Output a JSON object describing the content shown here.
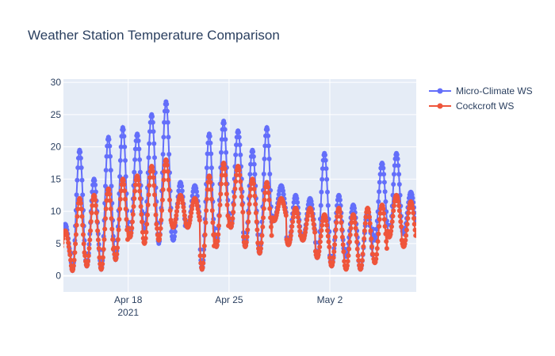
{
  "chart_data": {
    "type": "line",
    "title": "Weather Station Temperature Comparison",
    "xlabel": "",
    "ylabel": "",
    "x_range": [
      "2021-04-13T12:00",
      "2021-05-08T00:00"
    ],
    "ylim": [
      -2.5,
      30.5
    ],
    "y_ticks": [
      0,
      5,
      10,
      15,
      20,
      25,
      30
    ],
    "x_ticks": [
      {
        "value": "2021-04-18",
        "label": "Apr 18",
        "sublabel": "2021"
      },
      {
        "value": "2021-04-25",
        "label": "Apr 25",
        "sublabel": ""
      },
      {
        "value": "2021-05-02",
        "label": "May 2",
        "sublabel": ""
      }
    ],
    "grid": true,
    "legend_position": "top-right",
    "marker": "circle",
    "days": [
      "2021-04-13",
      "2021-04-14",
      "2021-04-15",
      "2021-04-16",
      "2021-04-17",
      "2021-04-18",
      "2021-04-19",
      "2021-04-20",
      "2021-04-21",
      "2021-04-22",
      "2021-04-23",
      "2021-04-24",
      "2021-04-25",
      "2021-04-26",
      "2021-04-27",
      "2021-04-28",
      "2021-04-29",
      "2021-04-30",
      "2021-05-01",
      "2021-05-02",
      "2021-05-03",
      "2021-05-04",
      "2021-05-05",
      "2021-05-06",
      "2021-05-07"
    ],
    "samples_per_day": 24,
    "series": [
      {
        "name": "Micro-Climate WS",
        "color": "#636efa",
        "daily_min": [
          2.0,
          0.8,
          1.5,
          1.0,
          2.5,
          6.0,
          7.0,
          5.0,
          5.5,
          7.5,
          1.0,
          4.5,
          7.5,
          4.5,
          3.5,
          8.5,
          4.8,
          5.5,
          2.8,
          1.5,
          3.0,
          1.0,
          5.5,
          6.0,
          6.5
        ],
        "daily_max": [
          8.0,
          19.5,
          15.0,
          21.5,
          23.0,
          22.0,
          25.0,
          27.0,
          14.5,
          14.0,
          22.0,
          24.0,
          22.5,
          19.5,
          23.0,
          14.0,
          12.5,
          12.0,
          19.0,
          12.5,
          11.0,
          10.0,
          17.5,
          19.0,
          13.0
        ]
      },
      {
        "name": "Cockcroft WS",
        "color": "#ef553b",
        "daily_min": [
          2.0,
          0.8,
          1.5,
          1.0,
          2.5,
          6.0,
          5.0,
          5.5,
          7.5,
          7.5,
          1.0,
          4.5,
          7.5,
          4.5,
          3.5,
          8.5,
          4.8,
          5.5,
          2.8,
          1.5,
          1.0,
          1.0,
          2.0,
          6.0,
          4.5
        ],
        "daily_max": [
          7.0,
          12.0,
          12.5,
          13.5,
          15.0,
          15.5,
          17.0,
          18.0,
          12.5,
          12.0,
          15.5,
          17.5,
          17.0,
          15.0,
          14.5,
          12.0,
          10.5,
          10.5,
          9.5,
          10.5,
          9.5,
          10.5,
          11.0,
          12.5,
          11.5
        ]
      }
    ]
  }
}
